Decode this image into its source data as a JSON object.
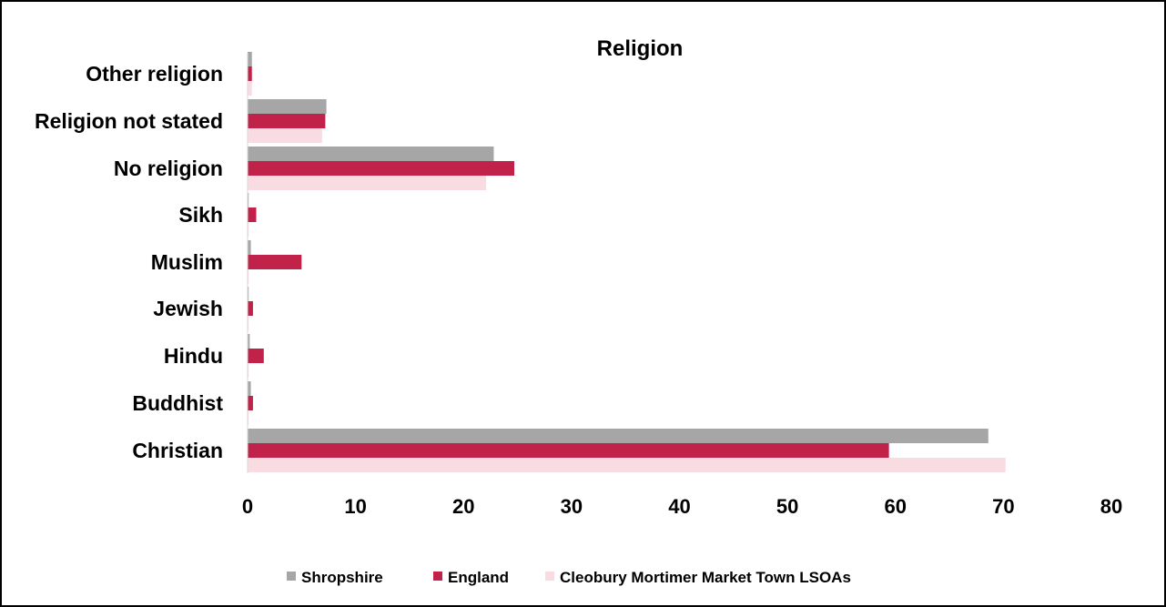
{
  "chart_data": {
    "type": "bar",
    "orientation": "horizontal",
    "title": "Religion",
    "categories": [
      "Christian",
      "Buddhist",
      "Hindu",
      "Jewish",
      "Muslim",
      "Sikh",
      "No religion",
      "Religion not stated",
      "Other religion"
    ],
    "series": [
      {
        "name": "Shropshire",
        "color": "#a6a6a6",
        "values": [
          68.6,
          0.3,
          0.2,
          0.1,
          0.3,
          0.1,
          22.8,
          7.3,
          0.4
        ]
      },
      {
        "name": "England",
        "color": "#c0224a",
        "values": [
          59.4,
          0.5,
          1.5,
          0.5,
          5.0,
          0.8,
          24.7,
          7.2,
          0.4
        ]
      },
      {
        "name": "Cleobury Mortimer Market Town LSOAs",
        "color": "#f8dce2",
        "values": [
          70.2,
          0.1,
          0.1,
          0.1,
          0.1,
          0.1,
          22.1,
          6.9,
          0.4
        ]
      }
    ],
    "xlim": [
      0,
      80
    ],
    "xticks": [
      "0",
      "10",
      "20",
      "30",
      "40",
      "50",
      "60",
      "70",
      "80"
    ],
    "grid": false,
    "legend_position": "bottom"
  }
}
